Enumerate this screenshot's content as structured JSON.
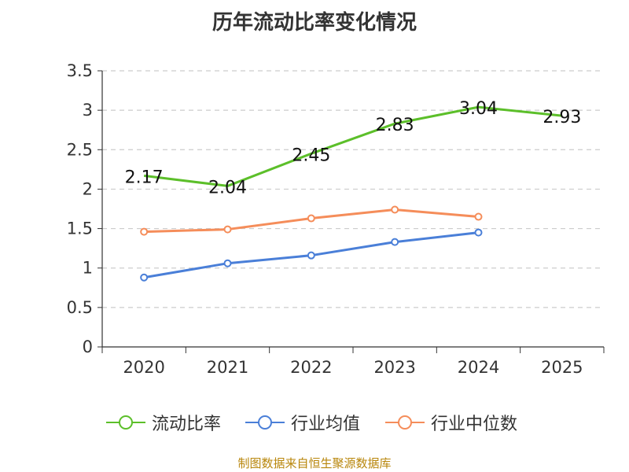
{
  "chart_data": {
    "type": "line",
    "title": "历年流动比率变化情况",
    "categories": [
      "2020",
      "2021",
      "2022",
      "2023",
      "2024",
      "2025"
    ],
    "ylim": [
      0,
      3.5
    ],
    "yticks": [
      0,
      0.5,
      1,
      1.5,
      2,
      2.5,
      3,
      3.5
    ],
    "ytick_labels": [
      "0",
      "0.5",
      "1",
      "1.5",
      "2",
      "2.5",
      "3",
      "3.5"
    ],
    "grid": true,
    "legend_position": "bottom",
    "series": [
      {
        "name": "流动比率",
        "color": "#5cbf2a",
        "values": [
          2.17,
          2.04,
          2.45,
          2.83,
          3.04,
          2.93
        ],
        "labels": [
          "2.17",
          "2.04",
          "2.45",
          "2.83",
          "3.04",
          "2.93"
        ],
        "show_markers": false
      },
      {
        "name": "行业均值",
        "color": "#4a7fd8",
        "values": [
          0.88,
          1.06,
          1.16,
          1.33,
          1.45,
          null
        ],
        "show_markers": true
      },
      {
        "name": "行业中位数",
        "color": "#f58d5a",
        "values": [
          1.46,
          1.49,
          1.63,
          1.74,
          1.65,
          null
        ],
        "show_markers": true
      }
    ],
    "source": "制图数据来自恒生聚源数据库"
  }
}
